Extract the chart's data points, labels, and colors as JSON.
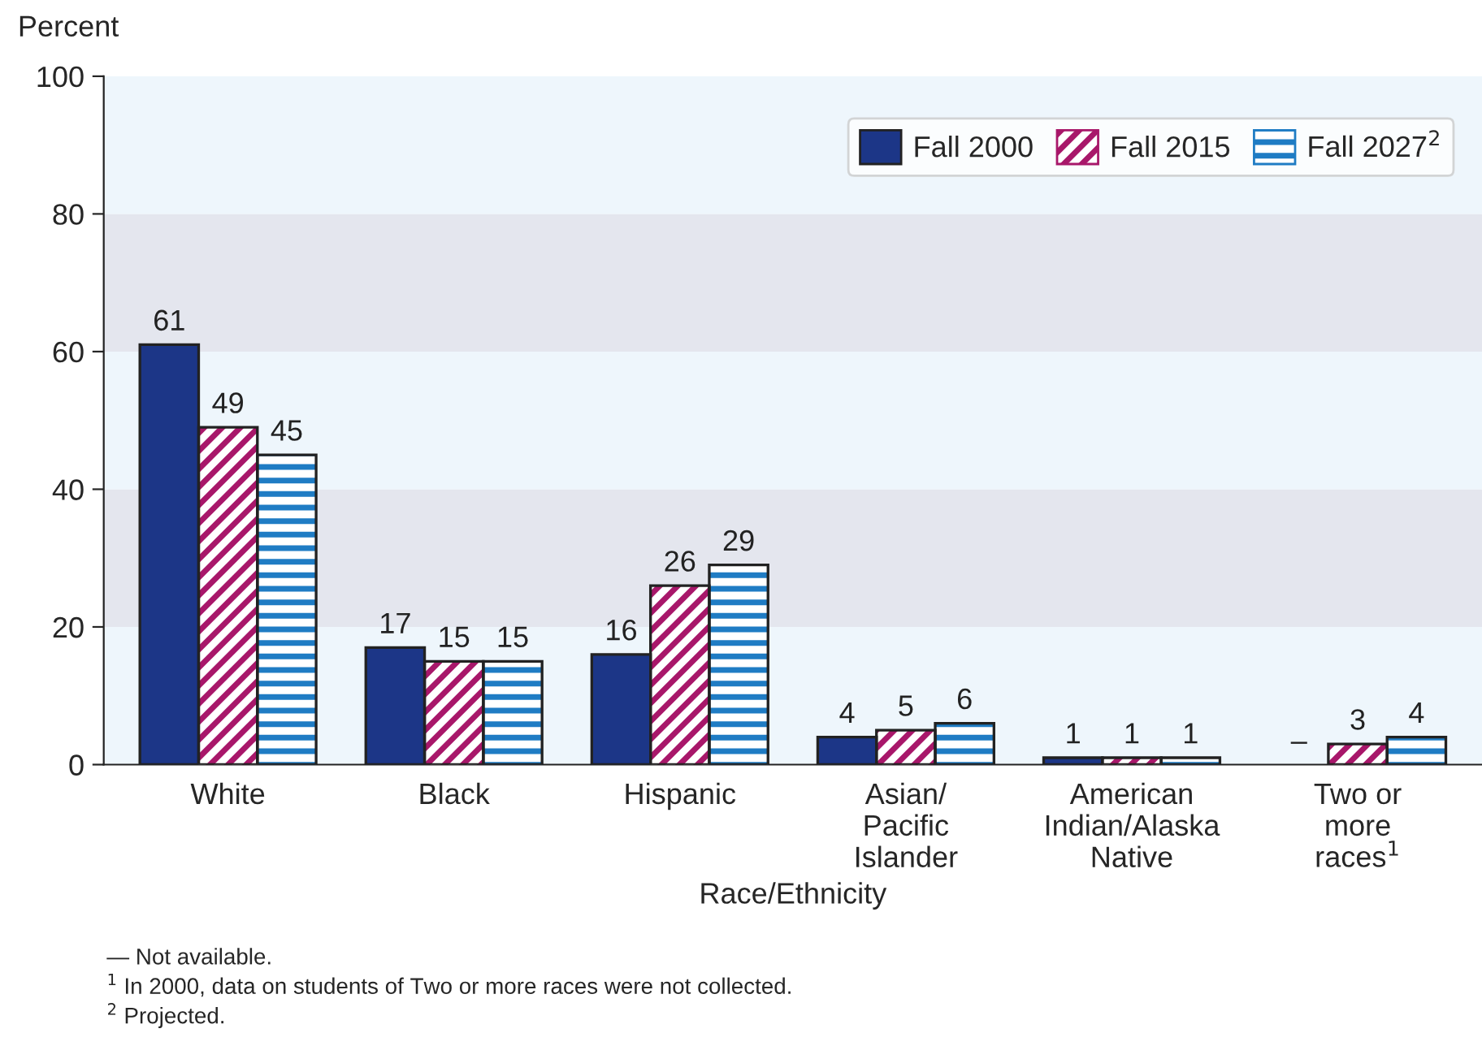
{
  "chart_data": {
    "type": "bar",
    "ylabel": "Percent",
    "xlabel": "Race/Ethnicity",
    "categories": [
      "White",
      "Black",
      "Hispanic",
      "Asian/\nPacific\nIslander",
      "American\nIndian/Alaska\nNative",
      "Two or\nmore\nraces$^{1}$"
    ],
    "series": [
      {
        "name": "Fall 2000",
        "color": "#1c3687",
        "values": [
          61,
          17,
          16,
          4,
          1,
          null
        ],
        "value_labels": [
          "61",
          "17",
          "16",
          "4",
          "1",
          "–"
        ]
      },
      {
        "name": "Fall 2015",
        "color": "#a8176a",
        "values": [
          49,
          15,
          26,
          5,
          1,
          3
        ],
        "value_labels": [
          "49",
          "15",
          "26",
          "5",
          "1",
          "3"
        ]
      },
      {
        "name": "Fall 2027$^{2}$",
        "color": "#1f7cc4",
        "values": [
          45,
          15,
          29,
          6,
          1,
          4
        ],
        "value_labels": [
          "45",
          "15",
          "29",
          "6",
          "1",
          "4"
        ]
      }
    ],
    "ylim": [
      0,
      100
    ],
    "yticks": [
      0,
      20,
      40,
      60,
      80,
      100
    ],
    "grid": false,
    "legend": "top right",
    "bands": [
      {
        "axis": "y",
        "from": 0,
        "to": 20,
        "color": "#eef6fc"
      },
      {
        "axis": "y",
        "from": 20,
        "to": 40,
        "color": "#e4e6ee"
      },
      {
        "axis": "y",
        "from": 40,
        "to": 60,
        "color": "#eef6fc"
      },
      {
        "axis": "y",
        "from": 60,
        "to": 80,
        "color": "#e4e6ee"
      },
      {
        "axis": "y",
        "from": 80,
        "to": 100,
        "color": "#eef6fc"
      }
    ],
    "annotations": [
      "— Not available.",
      "$^{1}$ In 2000, data on students of Two or more races were not collected.",
      "$^{2}$ Projected."
    ]
  }
}
